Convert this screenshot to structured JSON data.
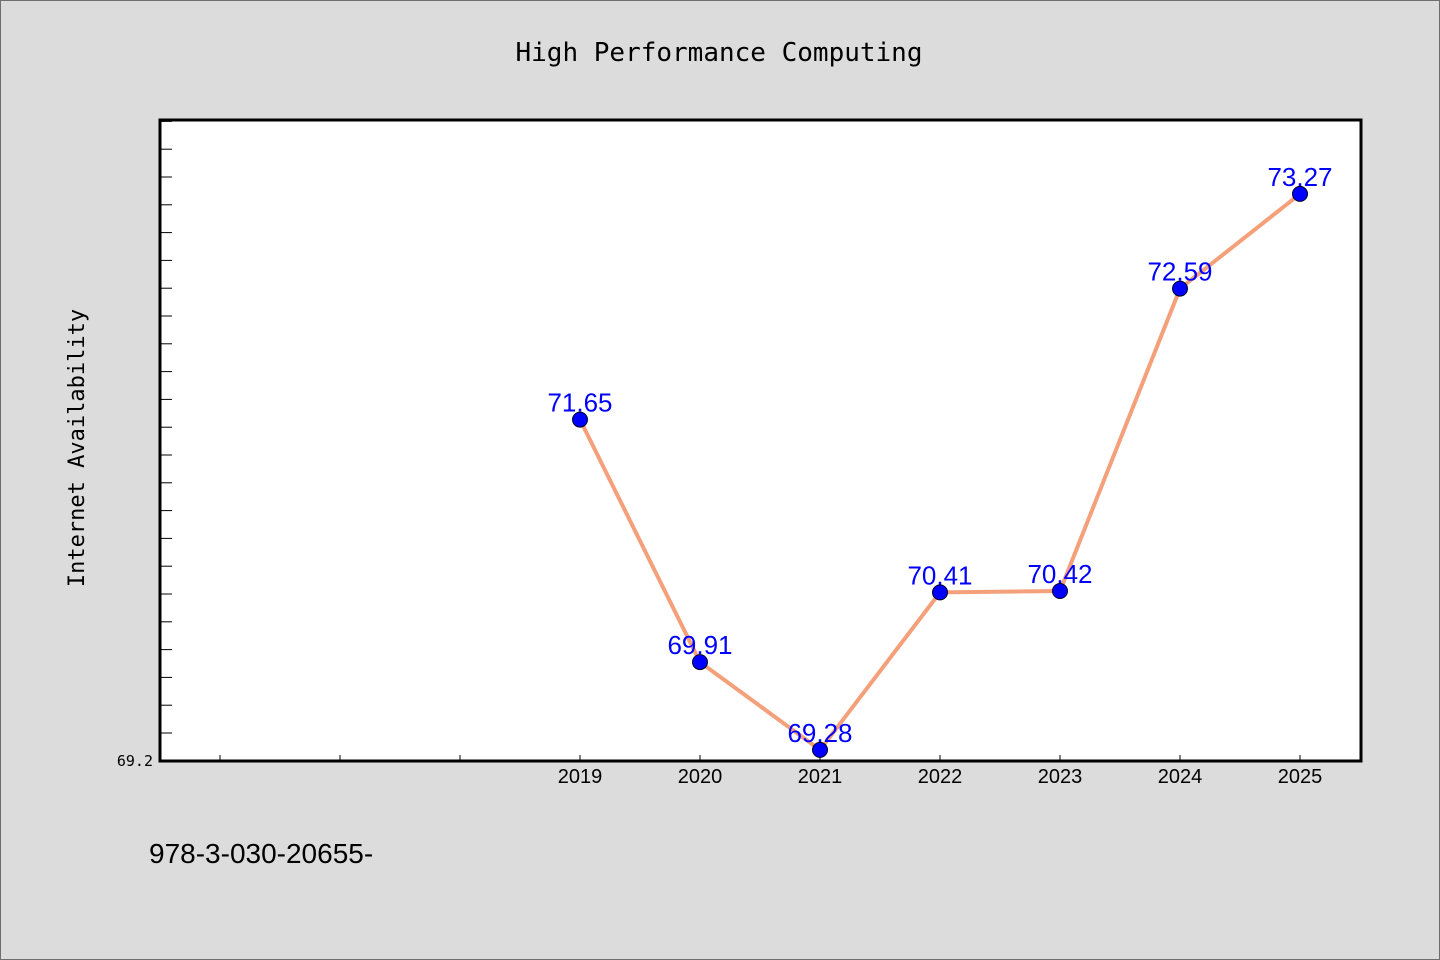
{
  "chart_data": {
    "type": "line",
    "title": "High Performance Computing",
    "xlabel": "",
    "ylabel": "Internet Availability",
    "categories": [
      "2019",
      "2020",
      "2021",
      "2022",
      "2023",
      "2024",
      "2025"
    ],
    "values": [
      71.65,
      69.91,
      69.28,
      70.41,
      70.42,
      72.59,
      73.27
    ],
    "data_labels": [
      "71.65",
      "69.91",
      "69.28",
      "70.41",
      "70.42",
      "72.59",
      "73.27"
    ],
    "ylim": [
      69.2,
      73.8
    ],
    "y_tick_label": "69.2",
    "grid": false,
    "legend": "none",
    "colors": {
      "line": "#f4a07a",
      "marker": "#0000ff",
      "data_label": "#0000ff",
      "plot_background": "#ffffff",
      "page_background": "#dcdcdc"
    }
  },
  "footer": {
    "text": "978-3-030-20655-"
  }
}
